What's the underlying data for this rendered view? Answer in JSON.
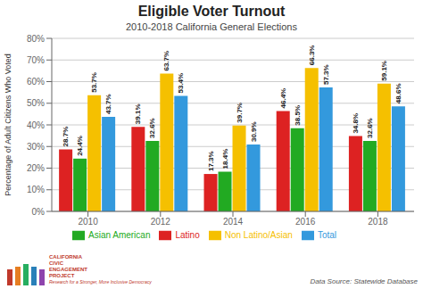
{
  "chart_data": {
    "type": "bar",
    "title": "Eligible Voter Turnout",
    "subtitle": "2010-2018 California General Elections",
    "y_label": "Percentage of Adult Citizens Who Voted",
    "categories": [
      "2010",
      "2012",
      "2014",
      "2016",
      "2018"
    ],
    "series": [
      {
        "name": "Latino",
        "color": "#dd2222",
        "values": [
          28.7,
          39.1,
          17.3,
          46.4,
          34.8
        ],
        "value_labels": [
          "28.7%",
          "39.1%",
          "17.3%",
          "46.4%",
          "34.8%"
        ]
      },
      {
        "name": "Asian American",
        "color": "#22aa22",
        "values": [
          24.4,
          32.6,
          18.4,
          38.5,
          32.6
        ],
        "value_labels": [
          "24.4%",
          "32.6%",
          "18.4%",
          "38.5%",
          "32.6%"
        ]
      },
      {
        "name": "Non Latino/Asian",
        "color": "#f5c000",
        "values": [
          53.7,
          63.7,
          39.7,
          66.3,
          59.1
        ],
        "value_labels": [
          "53.7%",
          "63.7%",
          "39.7%",
          "66.3%",
          "59.1%"
        ]
      },
      {
        "name": "Total",
        "color": "#3399dd",
        "values": [
          43.7,
          53.4,
          30.9,
          57.3,
          48.6
        ],
        "value_labels": [
          "43.7%",
          "53.4%",
          "30.9%",
          "57.3%",
          "48.6%"
        ]
      }
    ],
    "ylim": [
      0,
      80
    ],
    "yticks": [
      {
        "value": 0,
        "label": "0%"
      },
      {
        "value": 10,
        "label": "10%"
      },
      {
        "value": 20,
        "label": "20%"
      },
      {
        "value": 30,
        "label": "30%"
      },
      {
        "value": 40,
        "label": "40%"
      },
      {
        "value": 50,
        "label": "50%"
      },
      {
        "value": 60,
        "label": "60%"
      },
      {
        "value": 70,
        "label": "70%"
      },
      {
        "value": 80,
        "label": "80%"
      }
    ],
    "grid": true,
    "data_labels": true,
    "annotations": [
      "CALIFORNIA\nCIVIC\nENGAGEMENT\nPROJECT",
      "Research for a Stronger, More Inclusive Democracy",
      "Data Source: Statewide Database"
    ]
  }
}
